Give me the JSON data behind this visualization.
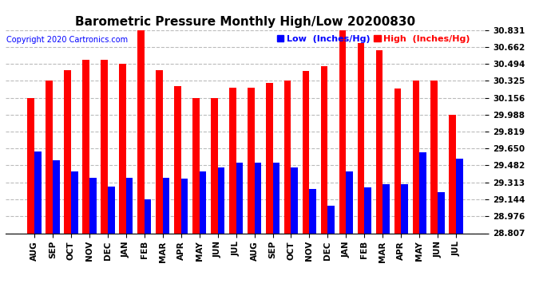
{
  "title": "Barometric Pressure Monthly High/Low 20200830",
  "copyright": "Copyright 2020 Cartronics.com",
  "legend_low": "Low  (Inches/Hg)",
  "legend_high": "High  (Inches/Hg)",
  "categories": [
    "AUG",
    "SEP",
    "OCT",
    "NOV",
    "DEC",
    "JAN",
    "FEB",
    "MAR",
    "APR",
    "MAY",
    "JUN",
    "JUL",
    "AUG",
    "SEP",
    "OCT",
    "NOV",
    "DEC",
    "JAN",
    "FEB",
    "MAR",
    "APR",
    "MAY",
    "JUN",
    "JUL"
  ],
  "high_values": [
    30.156,
    30.325,
    30.432,
    30.537,
    30.537,
    30.494,
    30.831,
    30.432,
    30.27,
    30.156,
    30.15,
    30.255,
    30.255,
    30.3,
    30.325,
    30.42,
    30.47,
    30.831,
    30.7,
    30.63,
    30.245,
    30.325,
    30.325,
    29.988
  ],
  "low_values": [
    29.62,
    29.532,
    29.42,
    29.358,
    29.27,
    29.358,
    29.144,
    29.358,
    29.35,
    29.42,
    29.46,
    29.51,
    29.51,
    29.51,
    29.462,
    29.25,
    29.082,
    29.42,
    29.262,
    29.295,
    29.295,
    29.61,
    29.215,
    29.55
  ],
  "high_color": "#ff0000",
  "low_color": "#0000ff",
  "background_color": "#ffffff",
  "title_fontsize": 11,
  "copyright_fontsize": 7,
  "legend_fontsize": 8,
  "tick_fontsize": 7.5,
  "xlabel_fontsize": 7.5,
  "ylim_min": 28.807,
  "ylim_max": 30.831,
  "yticks": [
    28.807,
    28.976,
    29.144,
    29.313,
    29.482,
    29.65,
    29.819,
    29.988,
    30.156,
    30.325,
    30.494,
    30.662,
    30.831
  ],
  "bar_width": 0.38,
  "grid_color": "#aaaaaa",
  "grid_linestyle": "--",
  "grid_alpha": 0.8
}
